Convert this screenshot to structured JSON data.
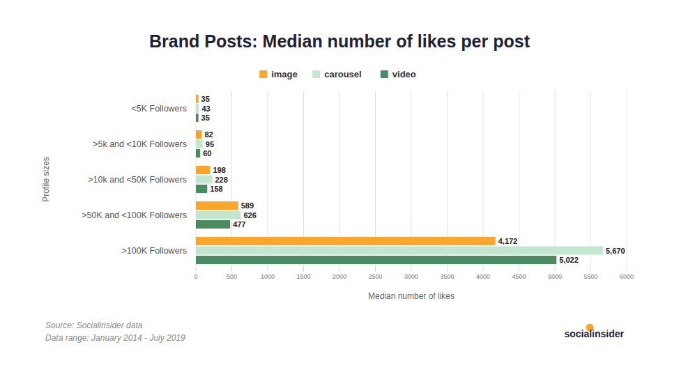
{
  "chart_data": {
    "type": "bar",
    "orientation": "horizontal",
    "title": "Brand Posts: Median number of likes per post",
    "xlabel": "Median number of likes",
    "ylabel": "Profile sizes",
    "categories": [
      "<5K Followers",
      ">5k and <10K Followers",
      ">10k and <50K Followers",
      ">50K and <100K Followers",
      ">100K Followers"
    ],
    "series": [
      {
        "name": "image",
        "color": "#f9a62b",
        "values": [
          35,
          82,
          198,
          589,
          4172
        ],
        "value_labels": [
          "35",
          "82",
          "198",
          "589",
          "4,172"
        ]
      },
      {
        "name": "carousel",
        "color": "#c3e6cf",
        "values": [
          43,
          95,
          228,
          626,
          5670
        ],
        "value_labels": [
          "43",
          "95",
          "228",
          "626",
          "5,670"
        ]
      },
      {
        "name": "video",
        "color": "#4b8b61",
        "values": [
          35,
          60,
          158,
          477,
          5022
        ],
        "value_labels": [
          "35",
          "60",
          "158",
          "477",
          "5,022"
        ]
      }
    ],
    "xlim": [
      0,
      6000
    ],
    "xticks": [
      0,
      500,
      1000,
      1500,
      2000,
      2500,
      3000,
      3500,
      4000,
      4500,
      5000,
      5500,
      6000
    ],
    "grid": true,
    "legend": "top",
    "data_labels": true,
    "annotations": [
      "Source: Socialinsider data",
      "Data range: January 2014 - July 2019",
      "socialinsider"
    ]
  }
}
